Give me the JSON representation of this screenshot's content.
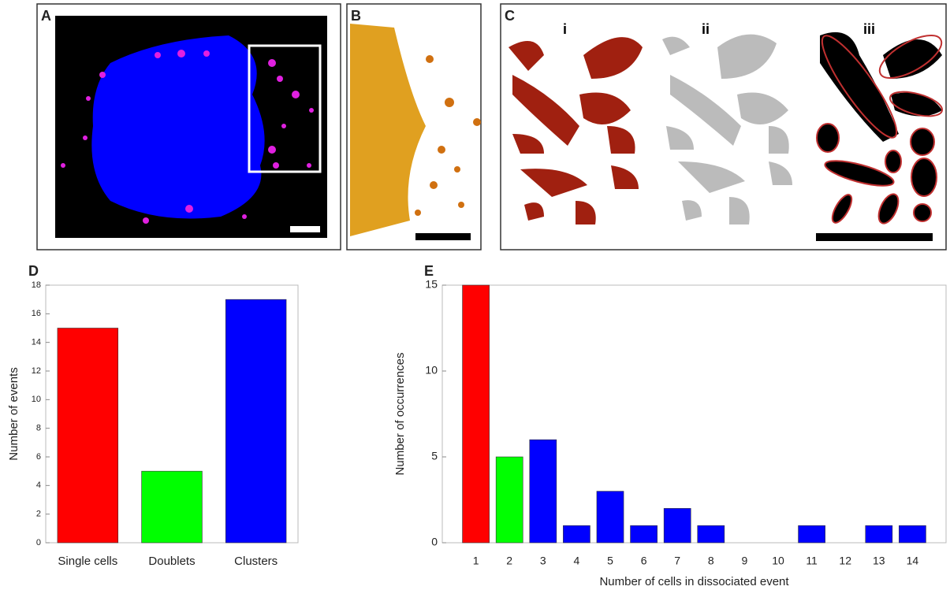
{
  "panel_labels": [
    "A",
    "B",
    "C",
    "D",
    "E"
  ],
  "sub_labels": [
    "i",
    "ii",
    "iii"
  ],
  "chart_data": [
    {
      "type": "bar",
      "categories": [
        "Single cells",
        "Doublets",
        "Clusters"
      ],
      "values": [
        15,
        5,
        17
      ],
      "colors": [
        "#ff0000",
        "#00ff00",
        "#0000ff"
      ],
      "ylabel": "Number of events",
      "ylim": [
        0,
        18
      ],
      "yticks": [
        0,
        2,
        4,
        6,
        8,
        10,
        12,
        14,
        16,
        18
      ]
    },
    {
      "type": "bar",
      "x": [
        1,
        2,
        3,
        4,
        5,
        6,
        7,
        8,
        9,
        10,
        11,
        12,
        13,
        14
      ],
      "values": [
        15,
        5,
        6,
        1,
        3,
        1,
        2,
        1,
        0,
        0,
        1,
        0,
        1,
        1
      ],
      "colors": [
        "#ff0000",
        "#00ff00",
        "#0000ff",
        "#0000ff",
        "#0000ff",
        "#0000ff",
        "#0000ff",
        "#0000ff",
        "#0000ff",
        "#0000ff",
        "#0000ff",
        "#0000ff",
        "#0000ff",
        "#0000ff"
      ],
      "xlabel": "Number of cells in dissociated event",
      "ylabel": "Number of occurrences",
      "xlim": [
        0,
        15
      ],
      "ylim": [
        0,
        15
      ],
      "yticks": [
        0,
        5,
        10,
        15
      ]
    }
  ]
}
